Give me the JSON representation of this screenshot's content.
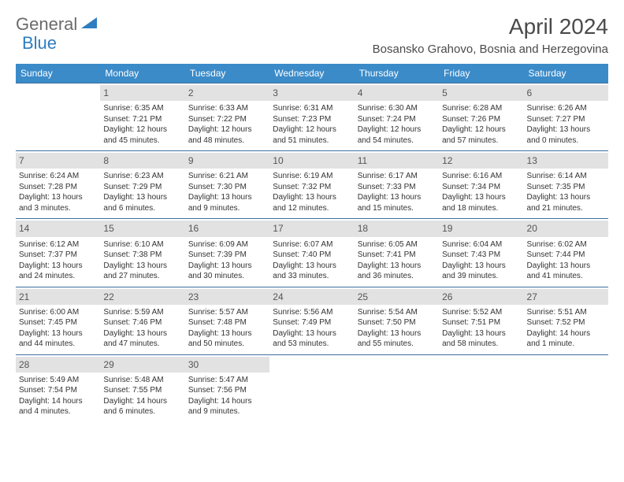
{
  "brand": {
    "part1": "General",
    "part2": "Blue",
    "color_gray": "#6b6b6b",
    "color_blue": "#2d7dc0"
  },
  "title": "April 2024",
  "location": "Bosansko Grahovo, Bosnia and Herzegovina",
  "header_bg": "#3b8bc9",
  "header_fg": "#ffffff",
  "border_color": "#3b6fa0",
  "daynum_bg": "#e2e2e2",
  "body_fontsize": 10,
  "weekdays": [
    "Sunday",
    "Monday",
    "Tuesday",
    "Wednesday",
    "Thursday",
    "Friday",
    "Saturday"
  ],
  "weeks": [
    [
      null,
      {
        "n": "1",
        "sr": "Sunrise: 6:35 AM",
        "ss": "Sunset: 7:21 PM",
        "d1": "Daylight: 12 hours",
        "d2": "and 45 minutes."
      },
      {
        "n": "2",
        "sr": "Sunrise: 6:33 AM",
        "ss": "Sunset: 7:22 PM",
        "d1": "Daylight: 12 hours",
        "d2": "and 48 minutes."
      },
      {
        "n": "3",
        "sr": "Sunrise: 6:31 AM",
        "ss": "Sunset: 7:23 PM",
        "d1": "Daylight: 12 hours",
        "d2": "and 51 minutes."
      },
      {
        "n": "4",
        "sr": "Sunrise: 6:30 AM",
        "ss": "Sunset: 7:24 PM",
        "d1": "Daylight: 12 hours",
        "d2": "and 54 minutes."
      },
      {
        "n": "5",
        "sr": "Sunrise: 6:28 AM",
        "ss": "Sunset: 7:26 PM",
        "d1": "Daylight: 12 hours",
        "d2": "and 57 minutes."
      },
      {
        "n": "6",
        "sr": "Sunrise: 6:26 AM",
        "ss": "Sunset: 7:27 PM",
        "d1": "Daylight: 13 hours",
        "d2": "and 0 minutes."
      }
    ],
    [
      {
        "n": "7",
        "sr": "Sunrise: 6:24 AM",
        "ss": "Sunset: 7:28 PM",
        "d1": "Daylight: 13 hours",
        "d2": "and 3 minutes."
      },
      {
        "n": "8",
        "sr": "Sunrise: 6:23 AM",
        "ss": "Sunset: 7:29 PM",
        "d1": "Daylight: 13 hours",
        "d2": "and 6 minutes."
      },
      {
        "n": "9",
        "sr": "Sunrise: 6:21 AM",
        "ss": "Sunset: 7:30 PM",
        "d1": "Daylight: 13 hours",
        "d2": "and 9 minutes."
      },
      {
        "n": "10",
        "sr": "Sunrise: 6:19 AM",
        "ss": "Sunset: 7:32 PM",
        "d1": "Daylight: 13 hours",
        "d2": "and 12 minutes."
      },
      {
        "n": "11",
        "sr": "Sunrise: 6:17 AM",
        "ss": "Sunset: 7:33 PM",
        "d1": "Daylight: 13 hours",
        "d2": "and 15 minutes."
      },
      {
        "n": "12",
        "sr": "Sunrise: 6:16 AM",
        "ss": "Sunset: 7:34 PM",
        "d1": "Daylight: 13 hours",
        "d2": "and 18 minutes."
      },
      {
        "n": "13",
        "sr": "Sunrise: 6:14 AM",
        "ss": "Sunset: 7:35 PM",
        "d1": "Daylight: 13 hours",
        "d2": "and 21 minutes."
      }
    ],
    [
      {
        "n": "14",
        "sr": "Sunrise: 6:12 AM",
        "ss": "Sunset: 7:37 PM",
        "d1": "Daylight: 13 hours",
        "d2": "and 24 minutes."
      },
      {
        "n": "15",
        "sr": "Sunrise: 6:10 AM",
        "ss": "Sunset: 7:38 PM",
        "d1": "Daylight: 13 hours",
        "d2": "and 27 minutes."
      },
      {
        "n": "16",
        "sr": "Sunrise: 6:09 AM",
        "ss": "Sunset: 7:39 PM",
        "d1": "Daylight: 13 hours",
        "d2": "and 30 minutes."
      },
      {
        "n": "17",
        "sr": "Sunrise: 6:07 AM",
        "ss": "Sunset: 7:40 PM",
        "d1": "Daylight: 13 hours",
        "d2": "and 33 minutes."
      },
      {
        "n": "18",
        "sr": "Sunrise: 6:05 AM",
        "ss": "Sunset: 7:41 PM",
        "d1": "Daylight: 13 hours",
        "d2": "and 36 minutes."
      },
      {
        "n": "19",
        "sr": "Sunrise: 6:04 AM",
        "ss": "Sunset: 7:43 PM",
        "d1": "Daylight: 13 hours",
        "d2": "and 39 minutes."
      },
      {
        "n": "20",
        "sr": "Sunrise: 6:02 AM",
        "ss": "Sunset: 7:44 PM",
        "d1": "Daylight: 13 hours",
        "d2": "and 41 minutes."
      }
    ],
    [
      {
        "n": "21",
        "sr": "Sunrise: 6:00 AM",
        "ss": "Sunset: 7:45 PM",
        "d1": "Daylight: 13 hours",
        "d2": "and 44 minutes."
      },
      {
        "n": "22",
        "sr": "Sunrise: 5:59 AM",
        "ss": "Sunset: 7:46 PM",
        "d1": "Daylight: 13 hours",
        "d2": "and 47 minutes."
      },
      {
        "n": "23",
        "sr": "Sunrise: 5:57 AM",
        "ss": "Sunset: 7:48 PM",
        "d1": "Daylight: 13 hours",
        "d2": "and 50 minutes."
      },
      {
        "n": "24",
        "sr": "Sunrise: 5:56 AM",
        "ss": "Sunset: 7:49 PM",
        "d1": "Daylight: 13 hours",
        "d2": "and 53 minutes."
      },
      {
        "n": "25",
        "sr": "Sunrise: 5:54 AM",
        "ss": "Sunset: 7:50 PM",
        "d1": "Daylight: 13 hours",
        "d2": "and 55 minutes."
      },
      {
        "n": "26",
        "sr": "Sunrise: 5:52 AM",
        "ss": "Sunset: 7:51 PM",
        "d1": "Daylight: 13 hours",
        "d2": "and 58 minutes."
      },
      {
        "n": "27",
        "sr": "Sunrise: 5:51 AM",
        "ss": "Sunset: 7:52 PM",
        "d1": "Daylight: 14 hours",
        "d2": "and 1 minute."
      }
    ],
    [
      {
        "n": "28",
        "sr": "Sunrise: 5:49 AM",
        "ss": "Sunset: 7:54 PM",
        "d1": "Daylight: 14 hours",
        "d2": "and 4 minutes."
      },
      {
        "n": "29",
        "sr": "Sunrise: 5:48 AM",
        "ss": "Sunset: 7:55 PM",
        "d1": "Daylight: 14 hours",
        "d2": "and 6 minutes."
      },
      {
        "n": "30",
        "sr": "Sunrise: 5:47 AM",
        "ss": "Sunset: 7:56 PM",
        "d1": "Daylight: 14 hours",
        "d2": "and 9 minutes."
      },
      null,
      null,
      null,
      null
    ]
  ]
}
